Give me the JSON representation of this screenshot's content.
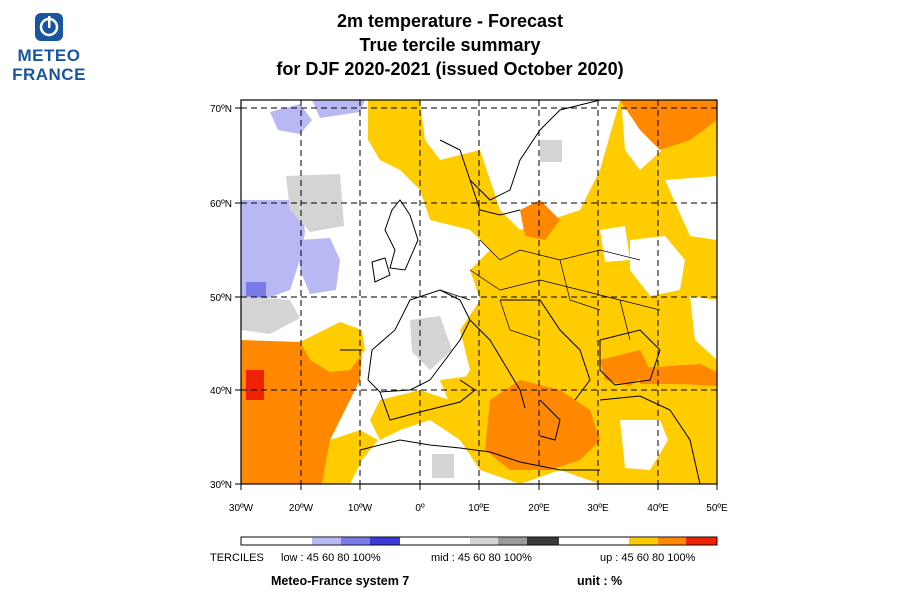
{
  "logo": {
    "line1": "METEO",
    "line2": "FRANCE"
  },
  "title": {
    "line1": "2m temperature   -   Forecast",
    "line2": "True tercile summary",
    "line3": "for DJF 2020-2021   (issued October 2020)"
  },
  "axes": {
    "lat_labels": [
      "70ºN",
      "60ºN",
      "50ºN",
      "40ºN",
      "30ºN"
    ],
    "lon_labels": [
      "30ºW",
      "20ºW",
      "10ºW",
      "0º",
      "10ºE",
      "20ºE",
      "30ºE",
      "40ºE",
      "50ºE"
    ],
    "lon_range": [
      -30,
      50
    ],
    "lat_range": [
      30,
      70
    ],
    "grid": "dashed, every 10 degrees"
  },
  "legend": {
    "label": "TERCILES",
    "low_text": "low : 45   60     80   100%",
    "mid_text": "mid : 45    60     80   100%",
    "up_text": "up : 45   60     80   100%",
    "colors": {
      "low": [
        "#b8b8f5",
        "#7a7ae8",
        "#3a3ad8"
      ],
      "mid": [
        "#d4d4d4",
        "#9a9a9a",
        "#3a3a3a"
      ],
      "up": [
        "#ffcc00",
        "#ff8800",
        "#ee2200"
      ]
    }
  },
  "footer": {
    "system": "Meteo-France system 7",
    "unit": "unit : %"
  }
}
